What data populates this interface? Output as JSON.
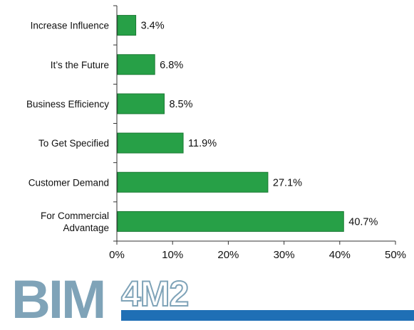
{
  "chart_data": {
    "type": "bar",
    "orientation": "horizontal",
    "categories": [
      "Increase Influence",
      "It’s the Future",
      "Business Efficiency",
      "To Get Specified",
      "Customer Demand",
      "For Commercial Advantage"
    ],
    "category_lines": [
      [
        "Increase Influence"
      ],
      [
        "It’s the Future"
      ],
      [
        "Business Efficiency"
      ],
      [
        "To Get Specified"
      ],
      [
        "Customer Demand"
      ],
      [
        "For Commercial",
        "Advantage"
      ]
    ],
    "values": [
      3.4,
      6.8,
      8.5,
      11.9,
      27.1,
      40.7
    ],
    "value_labels": [
      "3.4%",
      "6.8%",
      "8.5%",
      "11.9%",
      "27.1%",
      "40.7%"
    ],
    "xlim": [
      0,
      50
    ],
    "xticks": [
      0,
      10,
      20,
      30,
      40,
      50
    ],
    "xtick_labels": [
      "0%",
      "10%",
      "20%",
      "30%",
      "40%",
      "50%"
    ],
    "grid": false,
    "legend": "none",
    "bar_color": "#27a047",
    "bar_edge_color": "#1a7a33"
  },
  "logo": {
    "text_bim": "BIM",
    "text_4m2": "4M2",
    "color": "#7fa3b8",
    "bar_color": "#1f6fb5"
  }
}
